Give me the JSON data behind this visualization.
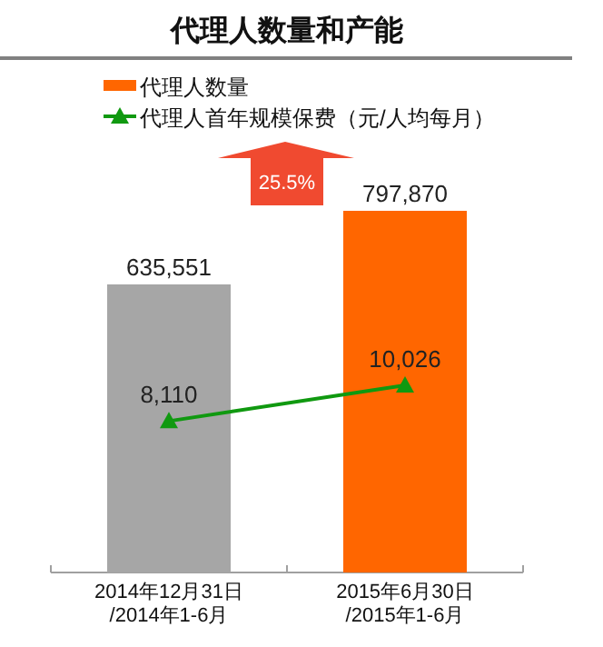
{
  "chart_data": {
    "type": "bar",
    "title": "代理人数量和产能",
    "categories": [
      "2014年12月31日\n/2014年1-6月",
      "2015年6月30日\n/2015年1-6月"
    ],
    "series": [
      {
        "name": "代理人数量",
        "color": "#ff6600",
        "colors": [
          "#a6a6a6",
          "#ff6600"
        ],
        "values": [
          635551,
          797870
        ],
        "value_labels": [
          "635,551",
          "797,870"
        ]
      },
      {
        "name": "代理人首年规模保费（元/人均每月）",
        "type": "line",
        "axis": "y2",
        "color": "#109910",
        "marker": "triangle",
        "values": [
          8110,
          10026
        ],
        "value_labels": [
          "8,110",
          "10,026"
        ]
      }
    ],
    "legend": "top left",
    "annotations": [
      "25.5%"
    ]
  }
}
